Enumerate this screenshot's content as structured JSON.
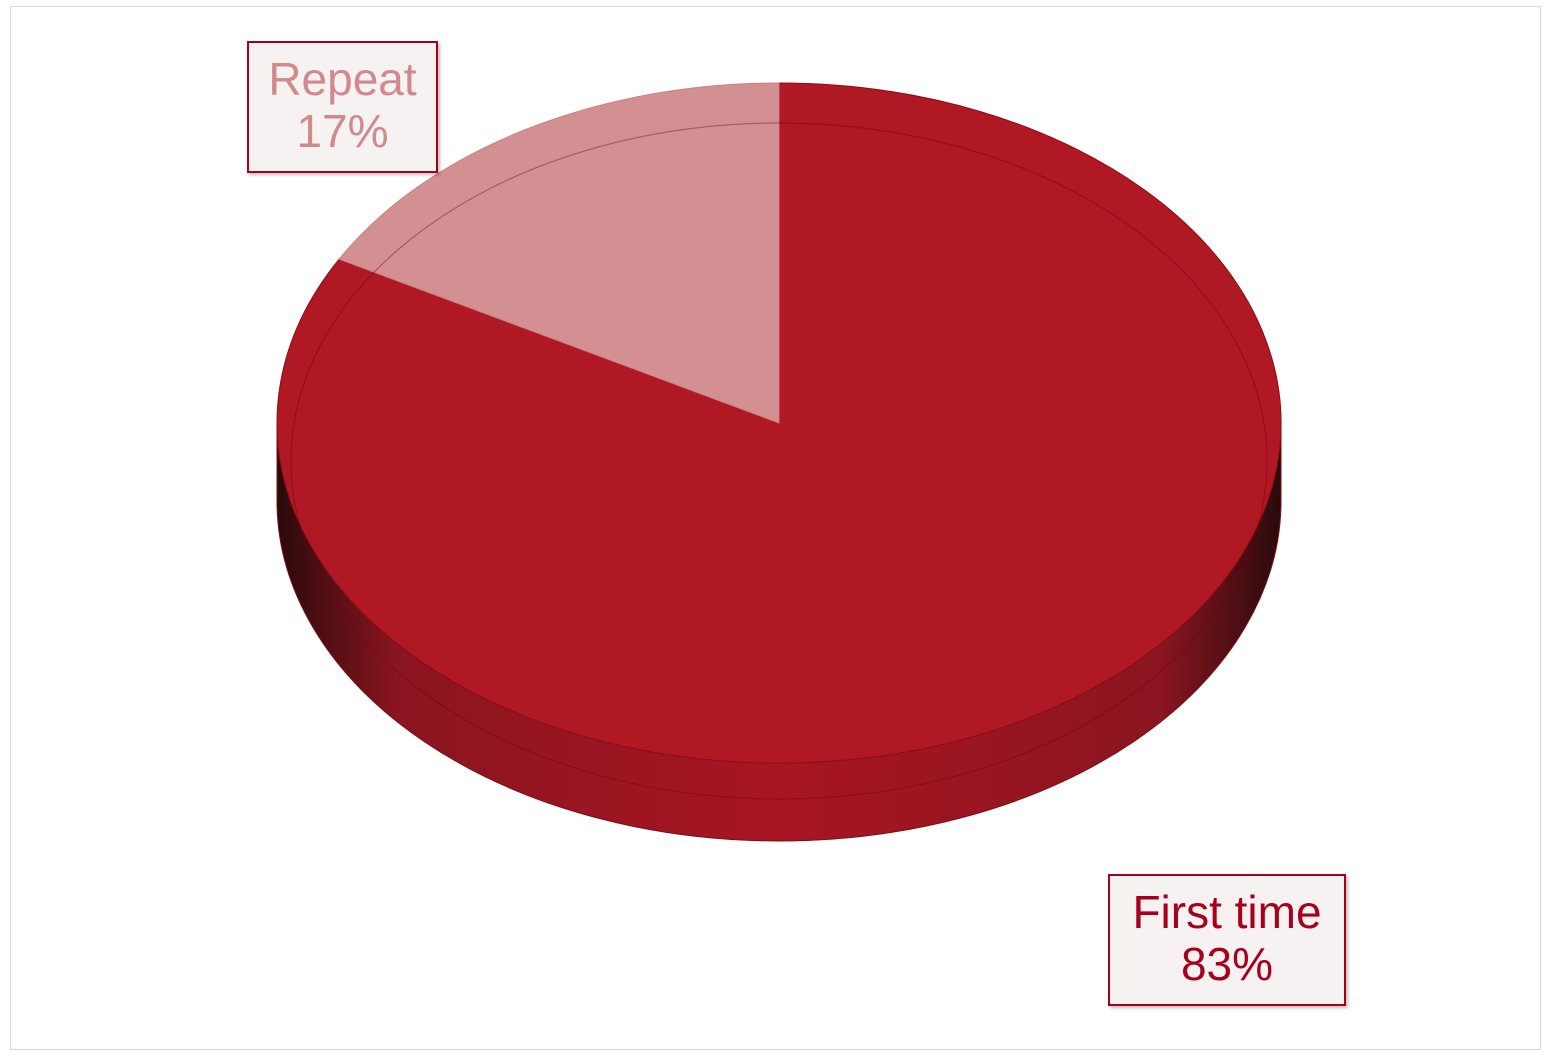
{
  "chart_data": {
    "type": "pie",
    "style": "3d",
    "categories": [
      "First time",
      "Repeat"
    ],
    "values": [
      83,
      17
    ],
    "value_labels": [
      "83%",
      "17%"
    ],
    "colors": [
      "#b01824",
      "#d08a8c"
    ],
    "side_colors": [
      "#a00a1a",
      "#8a1520"
    ],
    "label_colors": [
      "#a8001c",
      "#d08a8c"
    ],
    "title": "",
    "legend": "none"
  }
}
